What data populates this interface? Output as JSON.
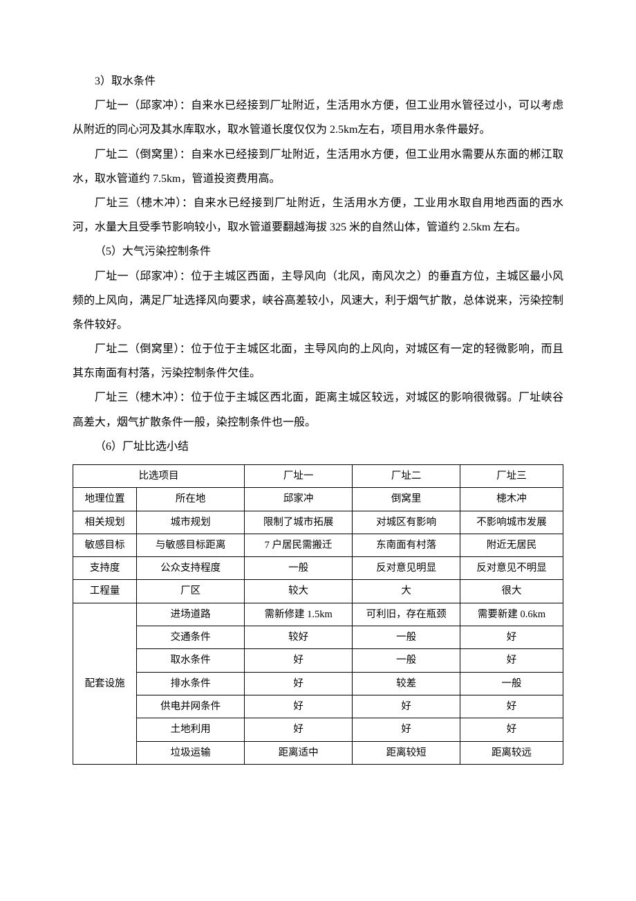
{
  "paragraphs": {
    "p1": "3）取水条件",
    "p2": "厂址一（邱家冲）：自来水已经接到厂址附近，生活用水方便，但工业用水管径过小，可以考虑从附近的同心河及其水库取水，取水管道长度仅仅为 2.5km左右，项目用水条件最好。",
    "p3": "厂址二（倒窝里）：自来水已经接到厂址附近，生活用水方便，但工业用水需要从东面的郴江取水，取水管道约 7.5km，管道投资费用高。",
    "p4": "厂址三（槵木冲）：自来水已经接到厂址附近，生活用水方便，工业用水取自用地西面的西水河，水量大且受季节影响较小，取水管道要翻越海拔 325 米的自然山体，管道约 2.5km 左右。",
    "p5": "（5）大气污染控制条件",
    "p6": "厂址一（邱家冲）：位于主城区西面，主导风向（北风，南风次之）的垂直方位，主城区最小风频的上风向，满足厂址选择风向要求，峡谷高差较小，风速大，利于烟气扩散，总体说来，污染控制条件较好。",
    "p7": "厂址二（倒窝里）：位于位于主城区北面，主导风向的上风向，对城区有一定的轻微影响，而且其东南面有村落，污染控制条件欠佳。",
    "p8": "厂址三（槵木冲）：位于位于主城区西北面，距离主城区较远，对城区的影响很微弱。厂址峡谷高差大，烟气扩散条件一般，染控制条件也一般。",
    "p9": "（6）厂址比选小结"
  },
  "table": {
    "header": {
      "c1": "比选项目",
      "c2": "厂址一",
      "c3": "厂址二",
      "c4": "厂址三"
    },
    "rows": [
      {
        "a": "地理位置",
        "b": "所在地",
        "c": "邱家冲",
        "d": "倒窝里",
        "e": "槵木冲"
      },
      {
        "a": "相关规划",
        "b": "城市规划",
        "c": "限制了城市拓展",
        "d": "对城区有影响",
        "e": "不影响城市发展"
      },
      {
        "a": "敏感目标",
        "b": "与敏感目标距离",
        "c": "7 户居民需搬迁",
        "d": "东南面有村落",
        "e": "附近无居民"
      },
      {
        "a": "支持度",
        "b": "公众支持程度",
        "c": "一般",
        "d": "反对意见明显",
        "e": "反对意见不明显"
      },
      {
        "a": "工程量",
        "b": "厂区",
        "c": "较大",
        "d": "大",
        "e": "很大"
      }
    ],
    "group": {
      "label": "配套设施",
      "rows": [
        {
          "b": "进场道路",
          "c": "需新修建 1.5km",
          "d": "可利旧，存在瓶颈",
          "e": "需要新建 0.6km"
        },
        {
          "b": "交通条件",
          "c": "较好",
          "d": "一般",
          "e": "好"
        },
        {
          "b": "取水条件",
          "c": "好",
          "d": "一般",
          "e": "好"
        },
        {
          "b": "排水条件",
          "c": "好",
          "d": "较差",
          "e": "一般"
        },
        {
          "b": "供电并网条件",
          "c": "好",
          "d": "好",
          "e": "好"
        },
        {
          "b": "土地利用",
          "c": "好",
          "d": "好",
          "e": "好"
        },
        {
          "b": "垃圾运输",
          "c": "距离适中",
          "d": "距离较短",
          "e": "距离较远"
        }
      ]
    }
  }
}
